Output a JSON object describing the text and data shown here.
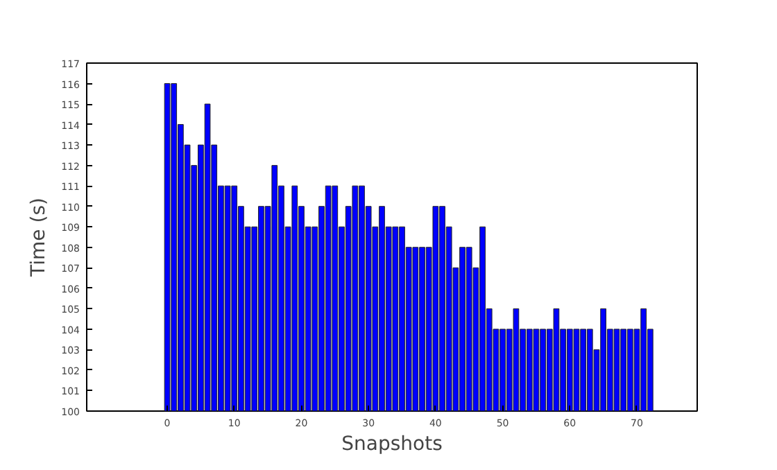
{
  "chart_data": {
    "type": "bar",
    "xlabel": "Snapshots",
    "ylabel": "Time (s)",
    "color": "#0000ff",
    "x": [
      0,
      1,
      2,
      3,
      4,
      5,
      6,
      7,
      8,
      9,
      10,
      11,
      12,
      13,
      14,
      15,
      16,
      17,
      18,
      19,
      20,
      21,
      22,
      23,
      24,
      25,
      26,
      27,
      28,
      29,
      30,
      31,
      32,
      33,
      34,
      35,
      36,
      37,
      38,
      39,
      40,
      41,
      42,
      43,
      44,
      45,
      46,
      47,
      48,
      49,
      50,
      51,
      52,
      53,
      54,
      55,
      56,
      57,
      58,
      59,
      60,
      61,
      62,
      63,
      64,
      65,
      66,
      67,
      68,
      69,
      70,
      71,
      72
    ],
    "values": [
      116,
      116,
      114,
      113,
      112,
      113,
      115,
      113,
      111,
      111,
      111,
      110,
      109,
      109,
      110,
      110,
      112,
      111,
      109,
      111,
      110,
      109,
      109,
      110,
      111,
      111,
      109,
      110,
      111,
      111,
      110,
      109,
      110,
      109,
      109,
      109,
      108,
      108,
      108,
      108,
      110,
      110,
      109,
      107,
      108,
      108,
      107,
      109,
      105,
      104,
      104,
      104,
      105,
      104,
      104,
      104,
      104,
      104,
      105,
      104,
      104,
      104,
      104,
      104,
      103,
      105,
      104,
      104,
      104,
      104,
      104,
      105,
      104
    ],
    "xlim": [
      -12,
      79
    ],
    "ylim": [
      100,
      117
    ],
    "xticks": [
      0,
      10,
      20,
      30,
      40,
      50,
      60,
      70
    ],
    "yticks": [
      100,
      101,
      102,
      103,
      104,
      105,
      106,
      107,
      108,
      109,
      110,
      111,
      112,
      113,
      114,
      115,
      116,
      117
    ],
    "grid": false
  }
}
